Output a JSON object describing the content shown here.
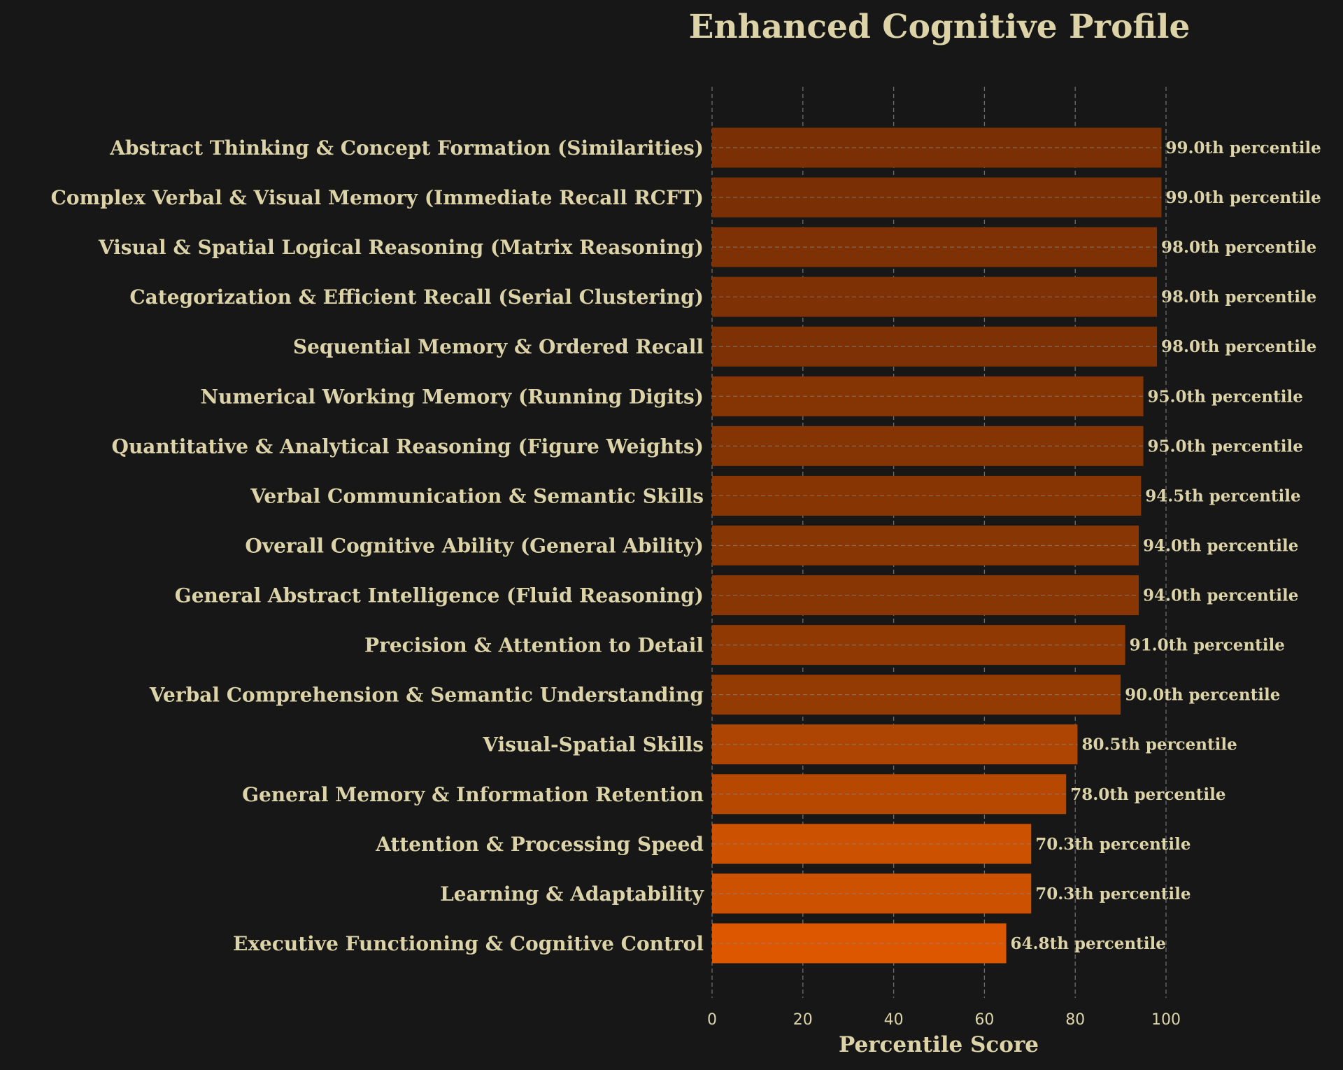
{
  "chart_data": {
    "type": "bar",
    "orientation": "horizontal",
    "title": "Enhanced Cognitive Profile",
    "xlabel": "Percentile Score",
    "ylabel": "",
    "xlim": [
      0,
      100
    ],
    "xticks": [
      "0",
      "20",
      "40",
      "60",
      "80",
      "100"
    ],
    "grid": "vertical dashed",
    "categories": [
      "Abstract Thinking & Concept Formation (Similarities)",
      "Complex Verbal & Visual Memory (Immediate Recall RCFT)",
      "Visual & Spatial Logical Reasoning (Matrix Reasoning)",
      "Categorization & Efficient Recall (Serial Clustering)",
      "Sequential Memory & Ordered Recall",
      "Numerical Working Memory (Running Digits)",
      "Quantitative & Analytical Reasoning (Figure Weights)",
      "Verbal Communication & Semantic Skills",
      "Overall Cognitive Ability (General Ability)",
      "General Abstract Intelligence (Fluid Reasoning)",
      "Precision & Attention to Detail",
      "Verbal Comprehension & Semantic Understanding",
      "Visual-Spatial Skills",
      "General Memory & Information Retention",
      "Attention & Processing Speed",
      "Learning & Adaptability",
      "Executive Functioning & Cognitive Control"
    ],
    "values": [
      99.0,
      99.0,
      98.0,
      98.0,
      98.0,
      95.0,
      95.0,
      94.5,
      94.0,
      94.0,
      91.0,
      90.0,
      80.5,
      78.0,
      70.3,
      70.3,
      64.8
    ],
    "value_labels": [
      "99.0th percentile",
      "99.0th percentile",
      "98.0th percentile",
      "98.0th percentile",
      "98.0th percentile",
      "95.0th percentile",
      "95.0th percentile",
      "94.5th percentile",
      "94.0th percentile",
      "94.0th percentile",
      "91.0th percentile",
      "90.0th percentile",
      "80.5th percentile",
      "78.0th percentile",
      "70.3th percentile",
      "70.3th percentile",
      "64.8th percentile"
    ],
    "colors": {
      "background": "#171717",
      "text": "#ddd3a8",
      "grid": "#8a8a8a",
      "bar_high": "#7a3004",
      "bar_low": "#dc5700"
    }
  }
}
